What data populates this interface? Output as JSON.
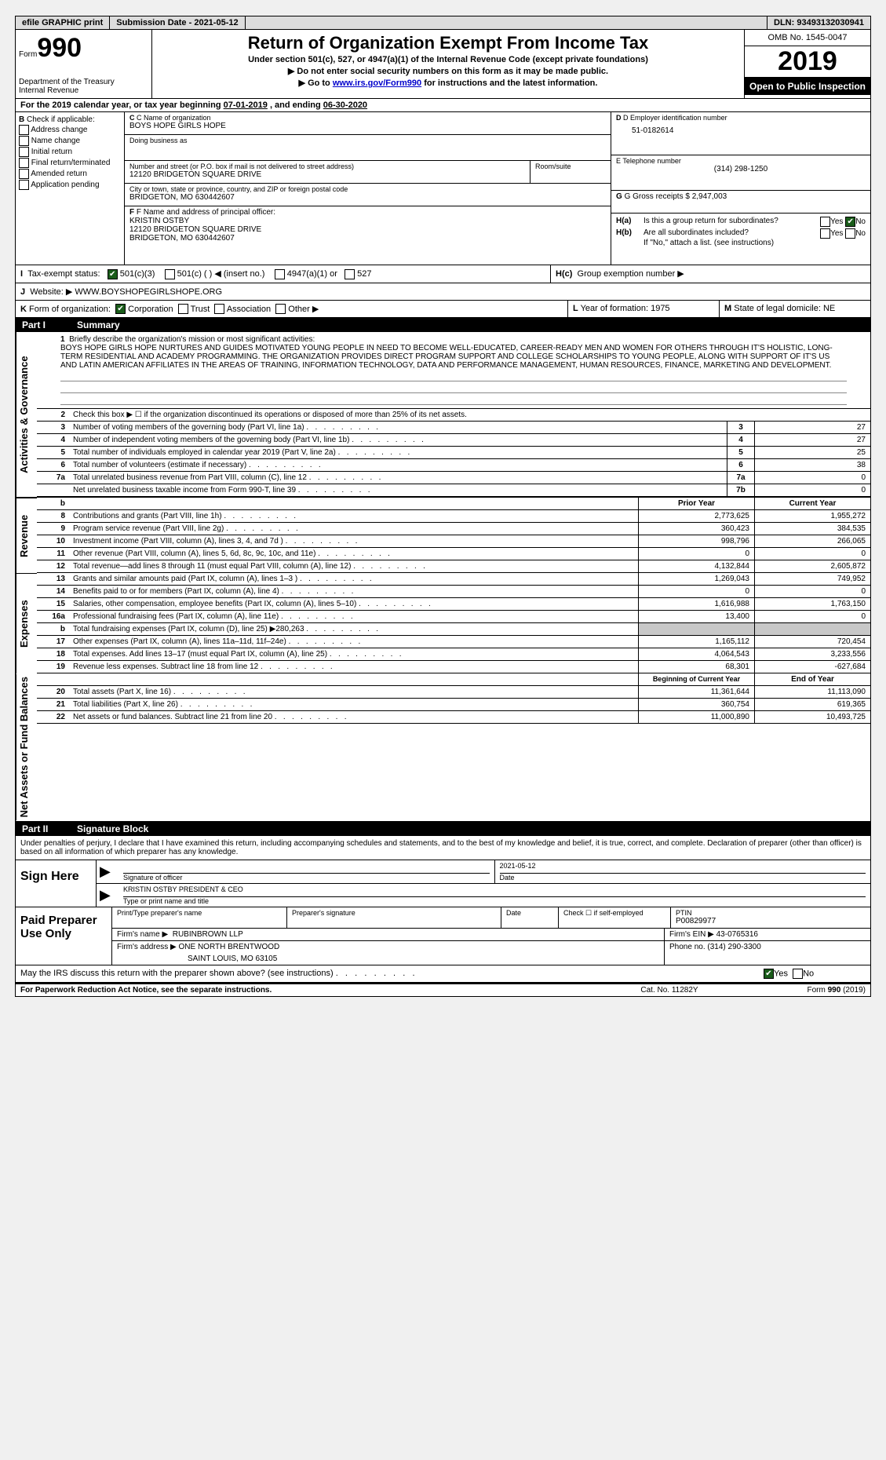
{
  "topbar": {
    "efile": "efile GRAPHIC print",
    "submission": "Submission Date",
    "submission_date": "2021-05-12",
    "dln_label": "DLN:",
    "dln": "93493132030941"
  },
  "header": {
    "form_word": "Form",
    "form_num": "990",
    "dept": "Department of the Treasury\nInternal Revenue\n",
    "title": "Return of Organization Exempt From Income Tax",
    "sub1": "Under section 501(c), 527, or 4947(a)(1) of the Internal Revenue Code (except private foundations)",
    "sub2": "▶ Do not enter social security numbers on this form as it may be made public.",
    "sub3_pre": "▶ Go to ",
    "sub3_link": "www.irs.gov/Form990",
    "sub3_post": " for instructions and the latest information.",
    "omb": "OMB No. 1545-0047",
    "year": "2019",
    "inspection": "Open to Public Inspection"
  },
  "sectionA": {
    "label": "A",
    "text_pre": "For the 2019 calendar year, or tax year beginning ",
    "begin": "07-01-2019",
    "text_mid": " , and ending ",
    "end": "06-30-2020"
  },
  "colB": {
    "label": "B",
    "header": "Check if applicable:",
    "items": [
      "Address change",
      "Name change",
      "Initial return",
      "Final return/terminated",
      "Amended return",
      "Application\n   pending"
    ]
  },
  "colC": {
    "name_label": "C Name of organization",
    "name": "BOYS HOPE GIRLS HOPE",
    "dba_label": "Doing business as",
    "dba": "",
    "street_label": "Number and street (or P.O. box if mail is not delivered to street address)",
    "street": "12120 BRIDGETON SQUARE DRIVE",
    "room_label": "Room/suite",
    "city_label": "City or town, state or province, country, and ZIP or foreign postal code",
    "city": "BRIDGETON, MO  630442607",
    "officer_label": "F  Name and address of principal officer:",
    "officer_name": "KRISTIN OSTBY",
    "officer_addr1": "12120 BRIDGETON SQUARE DRIVE",
    "officer_addr2": "BRIDGETON, MO  630442607"
  },
  "colD": {
    "ein_label": "D Employer identification number",
    "ein": "51-0182614",
    "phone_label": "E Telephone number",
    "phone": "(314) 298-1250",
    "gross_label": "G Gross receipts $",
    "gross": "2,947,003",
    "ha_label": "H(a)",
    "ha_text": "Is this a group return for subordinates?",
    "hb_label": "H(b)",
    "hb_text": "Are all subordinates included?",
    "hb_note": "If \"No,\" attach a list. (see instructions)",
    "hc_label": "H(c)",
    "hc_text": "Group exemption number ▶",
    "yes": "Yes",
    "no": "No"
  },
  "taxExempt": {
    "label_i": "I",
    "label": "Tax-exempt status:",
    "opt1": "501(c)(3)",
    "opt2": "501(c) (   ) ◀ (insert no.)",
    "opt3": "4947(a)(1) or",
    "opt4": "527"
  },
  "website": {
    "label": "J",
    "text": "Website: ▶",
    "url": "WWW.BOYSHOPEGIRLSHOPE.ORG"
  },
  "formOrg": {
    "label": "K",
    "text": "Form of organization:",
    "opts": [
      "Corporation",
      "Trust",
      "Association",
      "Other ▶"
    ],
    "l_label": "L",
    "l_text": "Year of formation:",
    "l_val": "1975",
    "m_label": "M",
    "m_text": "State of legal domicile:",
    "m_val": "NE"
  },
  "part1": {
    "num": "Part I",
    "title": "Summary",
    "side_labels": {
      "gov": "Activities & Governance",
      "rev": "Revenue",
      "exp": "Expenses",
      "net": "Net Assets or Fund Balances"
    },
    "mission_label": "1",
    "mission_intro": "Briefly describe the organization's mission or most significant activities:",
    "mission": "BOYS HOPE GIRLS HOPE NURTURES AND GUIDES MOTIVATED YOUNG PEOPLE IN NEED TO BECOME WELL-EDUCATED, CAREER-READY MEN AND WOMEN FOR OTHERS THROUGH IT'S HOLISTIC, LONG-TERM RESIDENTIAL AND ACADEMY PROGRAMMING. THE ORGANIZATION PROVIDES DIRECT PROGRAM SUPPORT AND COLLEGE SCHOLARSHIPS TO YOUNG PEOPLE, ALONG WITH SUPPORT OF IT'S US AND LATIN AMERICAN AFFILIATES IN THE AREAS OF TRAINING, INFORMATION TECHNOLOGY, DATA AND PERFORMANCE MANAGEMENT, HUMAN RESOURCES, FINANCE, MARKETING AND DEVELOPMENT.",
    "line2": "Check this box ▶ ☐  if the organization discontinued its operations or disposed of more than 25% of its net assets.",
    "gov_lines": [
      {
        "num": "3",
        "text": "Number of voting members of the governing body (Part VI, line 1a)",
        "box": "3",
        "val": "27"
      },
      {
        "num": "4",
        "text": "Number of independent voting members of the governing body (Part VI, line 1b)",
        "box": "4",
        "val": "27"
      },
      {
        "num": "5",
        "text": "Total number of individuals employed in calendar year 2019 (Part V, line 2a)",
        "box": "5",
        "val": "25"
      },
      {
        "num": "6",
        "text": "Total number of volunteers (estimate if necessary)",
        "box": "6",
        "val": "38"
      },
      {
        "num": "7a",
        "text": "Total unrelated business revenue from Part VIII, column (C), line 12",
        "box": "7a",
        "val": "0"
      },
      {
        "num": "",
        "text": "Net unrelated business taxable income from Form 990-T, line 39",
        "box": "7b",
        "val": "0"
      }
    ],
    "col_prior": "Prior Year",
    "col_current": "Current Year",
    "rev_lines": [
      {
        "num": "8",
        "text": "Contributions and grants (Part VIII, line 1h)",
        "prior": "2,773,625",
        "curr": "1,955,272"
      },
      {
        "num": "9",
        "text": "Program service revenue (Part VIII, line 2g)",
        "prior": "360,423",
        "curr": "384,535"
      },
      {
        "num": "10",
        "text": "Investment income (Part VIII, column (A), lines 3, 4, and 7d )",
        "prior": "998,796",
        "curr": "266,065"
      },
      {
        "num": "11",
        "text": "Other revenue (Part VIII, column (A), lines 5, 6d, 8c, 9c, 10c, and 11e)",
        "prior": "0",
        "curr": "0"
      },
      {
        "num": "12",
        "text": "Total revenue—add lines 8 through 11 (must equal Part VIII, column (A), line 12)",
        "prior": "4,132,844",
        "curr": "2,605,872"
      }
    ],
    "exp_lines": [
      {
        "num": "13",
        "text": "Grants and similar amounts paid (Part IX, column (A), lines 1–3 )",
        "prior": "1,269,043",
        "curr": "749,952"
      },
      {
        "num": "14",
        "text": "Benefits paid to or for members (Part IX, column (A), line 4)",
        "prior": "0",
        "curr": "0"
      },
      {
        "num": "15",
        "text": "Salaries, other compensation, employee benefits (Part IX, column (A), lines 5–10)",
        "prior": "1,616,988",
        "curr": "1,763,150"
      },
      {
        "num": "16a",
        "text": "Professional fundraising fees (Part IX, column (A), line 11e)",
        "prior": "13,400",
        "curr": "0"
      },
      {
        "num": "b",
        "text": "Total fundraising expenses (Part IX, column (D), line 25) ▶280,263",
        "prior": "SHADE",
        "curr": "SHADE"
      },
      {
        "num": "17",
        "text": "Other expenses (Part IX, column (A), lines 11a–11d, 11f–24e)",
        "prior": "1,165,112",
        "curr": "720,454"
      },
      {
        "num": "18",
        "text": "Total expenses. Add lines 13–17 (must equal Part IX, column (A), line 25)",
        "prior": "4,064,543",
        "curr": "3,233,556"
      },
      {
        "num": "19",
        "text": "Revenue less expenses. Subtract line 18 from line 12",
        "prior": "68,301",
        "curr": "-627,684"
      }
    ],
    "col_begin": "Beginning of Current Year",
    "col_end": "End of Year",
    "net_lines": [
      {
        "num": "20",
        "text": "Total assets (Part X, line 16)",
        "prior": "11,361,644",
        "curr": "11,113,090"
      },
      {
        "num": "21",
        "text": "Total liabilities (Part X, line 26)",
        "prior": "360,754",
        "curr": "619,365"
      },
      {
        "num": "22",
        "text": "Net assets or fund balances. Subtract line 21 from line 20",
        "prior": "11,000,890",
        "curr": "10,493,725"
      }
    ]
  },
  "part2": {
    "num": "Part II",
    "title": "Signature Block",
    "perjury": "Under penalties of perjury, I declare that I have examined this return, including accompanying schedules and statements, and to the best of my knowledge and belief, it is true, correct, and complete. Declaration of preparer (other than officer) is based on all information of which preparer has any knowledge.",
    "sign_here": "Sign Here",
    "sig_officer": "Signature of officer",
    "date_label": "Date",
    "sig_date": "2021-05-12",
    "name_title": "KRISTIN OSTBY PRESIDENT & CEO",
    "name_title_label": "Type or print name and title",
    "paid": "Paid Preparer Use Only",
    "prep_name_label": "Print/Type preparer's name",
    "prep_sig_label": "Preparer's signature",
    "prep_date_label": "Date",
    "check_self": "Check ☐ if self-employed",
    "ptin_label": "PTIN",
    "ptin": "P00829977",
    "firm_name_label": "Firm's name    ▶",
    "firm_name": "RUBINBROWN LLP",
    "firm_ein_label": "Firm's EIN ▶",
    "firm_ein": "43-0765316",
    "firm_addr_label": "Firm's address ▶",
    "firm_addr1": "ONE NORTH BRENTWOOD",
    "firm_addr2": "SAINT LOUIS, MO  63105",
    "phone_label": "Phone no.",
    "phone": "(314) 290-3300",
    "discuss": "May the IRS discuss this return with the preparer shown above? (see instructions)",
    "yes": "Yes",
    "no": "No"
  },
  "footer": {
    "left": "For Paperwork Reduction Act Notice, see the separate instructions.",
    "mid": "Cat. No. 11282Y",
    "right": "Form 990 (2019)"
  }
}
